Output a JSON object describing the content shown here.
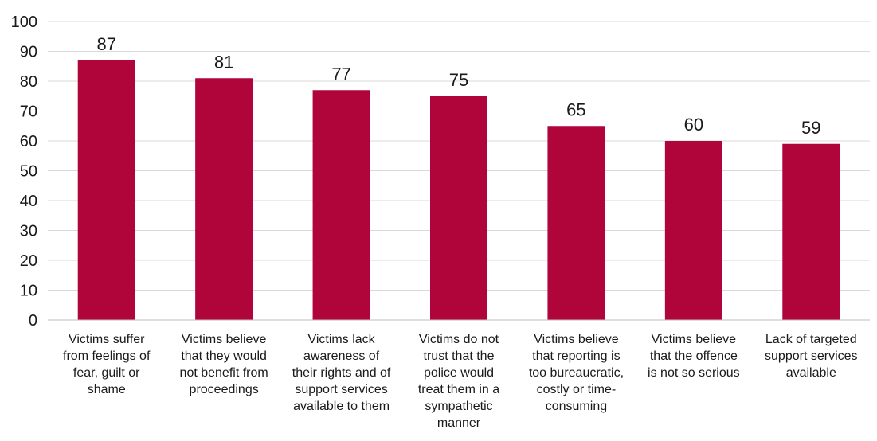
{
  "chart_data": {
    "type": "bar",
    "title": "",
    "xlabel": "",
    "ylabel": "",
    "ylim": [
      0,
      100
    ],
    "yticks": [
      0,
      10,
      20,
      30,
      40,
      50,
      60,
      70,
      80,
      90,
      100
    ],
    "grid": true,
    "bar_color": "#b0053a",
    "grid_color": "#d9d9d9",
    "categories": [
      [
        "Victims suffer",
        "from feelings of",
        "fear, guilt or",
        "shame"
      ],
      [
        "Victims believe",
        "that they would",
        "not benefit from",
        "proceedings"
      ],
      [
        "Victims lack",
        "awareness of",
        "their rights and of",
        "support services",
        "available to them"
      ],
      [
        "Victims do not",
        "trust that the",
        "police would",
        "treat them in a",
        "sympathetic",
        "manner"
      ],
      [
        "Victims believe",
        "that reporting is",
        "too bureaucratic,",
        "costly or time-",
        "consuming"
      ],
      [
        "Victims believe",
        "that the offence",
        "is not so serious"
      ],
      [
        "Lack of targeted",
        "support services",
        "available"
      ]
    ],
    "values": [
      87,
      81,
      77,
      75,
      65,
      60,
      59
    ]
  }
}
